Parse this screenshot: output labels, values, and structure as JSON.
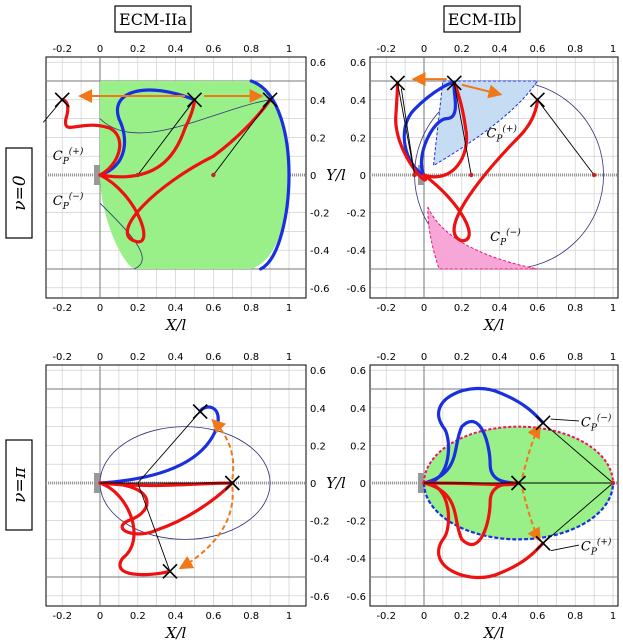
{
  "figure": {
    "column_titles": [
      "ECM-IIa",
      "ECM-IIb"
    ],
    "row_labels": [
      "ν=0",
      "ν=π"
    ],
    "x_axis_label": "X/l",
    "y_axis_label": "Y/l",
    "x_ticks": [
      "-0.2",
      "0",
      "0.2",
      "0.4",
      "0.6",
      "0.8",
      "1"
    ],
    "y_ticks": [
      "0.6",
      "0.4",
      "0.2",
      "0",
      "-0.2",
      "-0.4",
      "-0.6"
    ],
    "curve_labels": {
      "cp_plus": "C",
      "cp_minus": "C",
      "sub": "P",
      "sup_plus": "(+)",
      "sup_minus": "(−)"
    },
    "colors": {
      "green_region": "#99ef88",
      "blue_region": "#c5dcf3",
      "pink_region": "#f7a6d8",
      "blue_curve": "#1a2fe0",
      "red_curve": "#ee1111",
      "orange_arrow": "#f07818",
      "ellipse": "#33337a"
    }
  },
  "chart_data": [
    {
      "type": "diagram",
      "panel": "ECM-IIa, nu=0",
      "xlim": [
        -0.3,
        1.08
      ],
      "ylim": [
        -0.66,
        0.66
      ],
      "markers_x": [
        [
          -0.2,
          0.4
        ],
        [
          0.5,
          0.4
        ],
        [
          0.9,
          0.4
        ]
      ],
      "base_points": [
        [
          0.2,
          0
        ],
        [
          0.6,
          0
        ]
      ]
    },
    {
      "type": "diagram",
      "panel": "ECM-IIb, nu=0",
      "xlim": [
        -0.3,
        1.08
      ],
      "ylim": [
        -0.66,
        0.66
      ],
      "markers_x": [
        [
          -0.14,
          0.49
        ],
        [
          0.16,
          0.49
        ],
        [
          0.6,
          0.4
        ]
      ],
      "base_points": [
        [
          -0.05,
          0
        ],
        [
          0.25,
          0
        ],
        [
          0.9,
          0
        ]
      ]
    },
    {
      "type": "diagram",
      "panel": "ECM-IIa, nu=pi",
      "xlim": [
        -0.3,
        1.08
      ],
      "ylim": [
        -0.66,
        0.66
      ],
      "markers_x": [
        [
          0.53,
          0.38
        ],
        [
          0.37,
          -0.47
        ],
        [
          0.7,
          0
        ]
      ],
      "base_points": [
        [
          0.7,
          0
        ]
      ]
    },
    {
      "type": "diagram",
      "panel": "ECM-IIb, nu=pi",
      "xlim": [
        -0.3,
        1.08
      ],
      "ylim": [
        -0.66,
        0.66
      ],
      "markers_x": [
        [
          0.63,
          0.32
        ],
        [
          0.63,
          -0.32
        ],
        [
          0.5,
          0
        ]
      ],
      "base_points": [
        [
          1.0,
          0
        ]
      ]
    }
  ]
}
